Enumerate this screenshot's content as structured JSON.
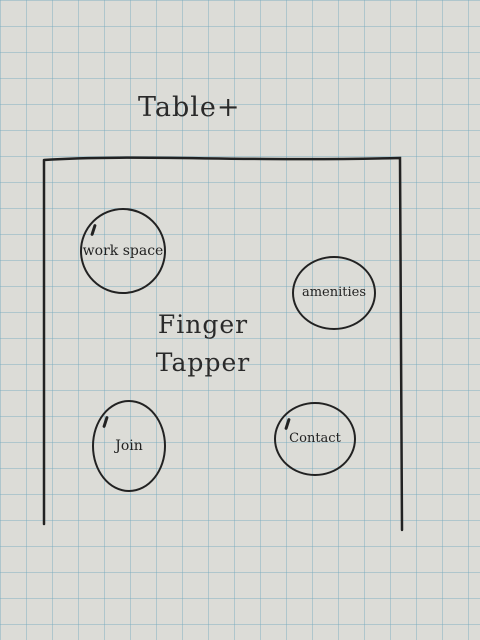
{
  "sketch": {
    "title": "Table+",
    "app_name_line1": "Finger",
    "app_name_line2": "Tapper",
    "buttons": {
      "workspace": "work space",
      "amenities": "amenities",
      "join": "Join",
      "contact": "Contact"
    }
  }
}
